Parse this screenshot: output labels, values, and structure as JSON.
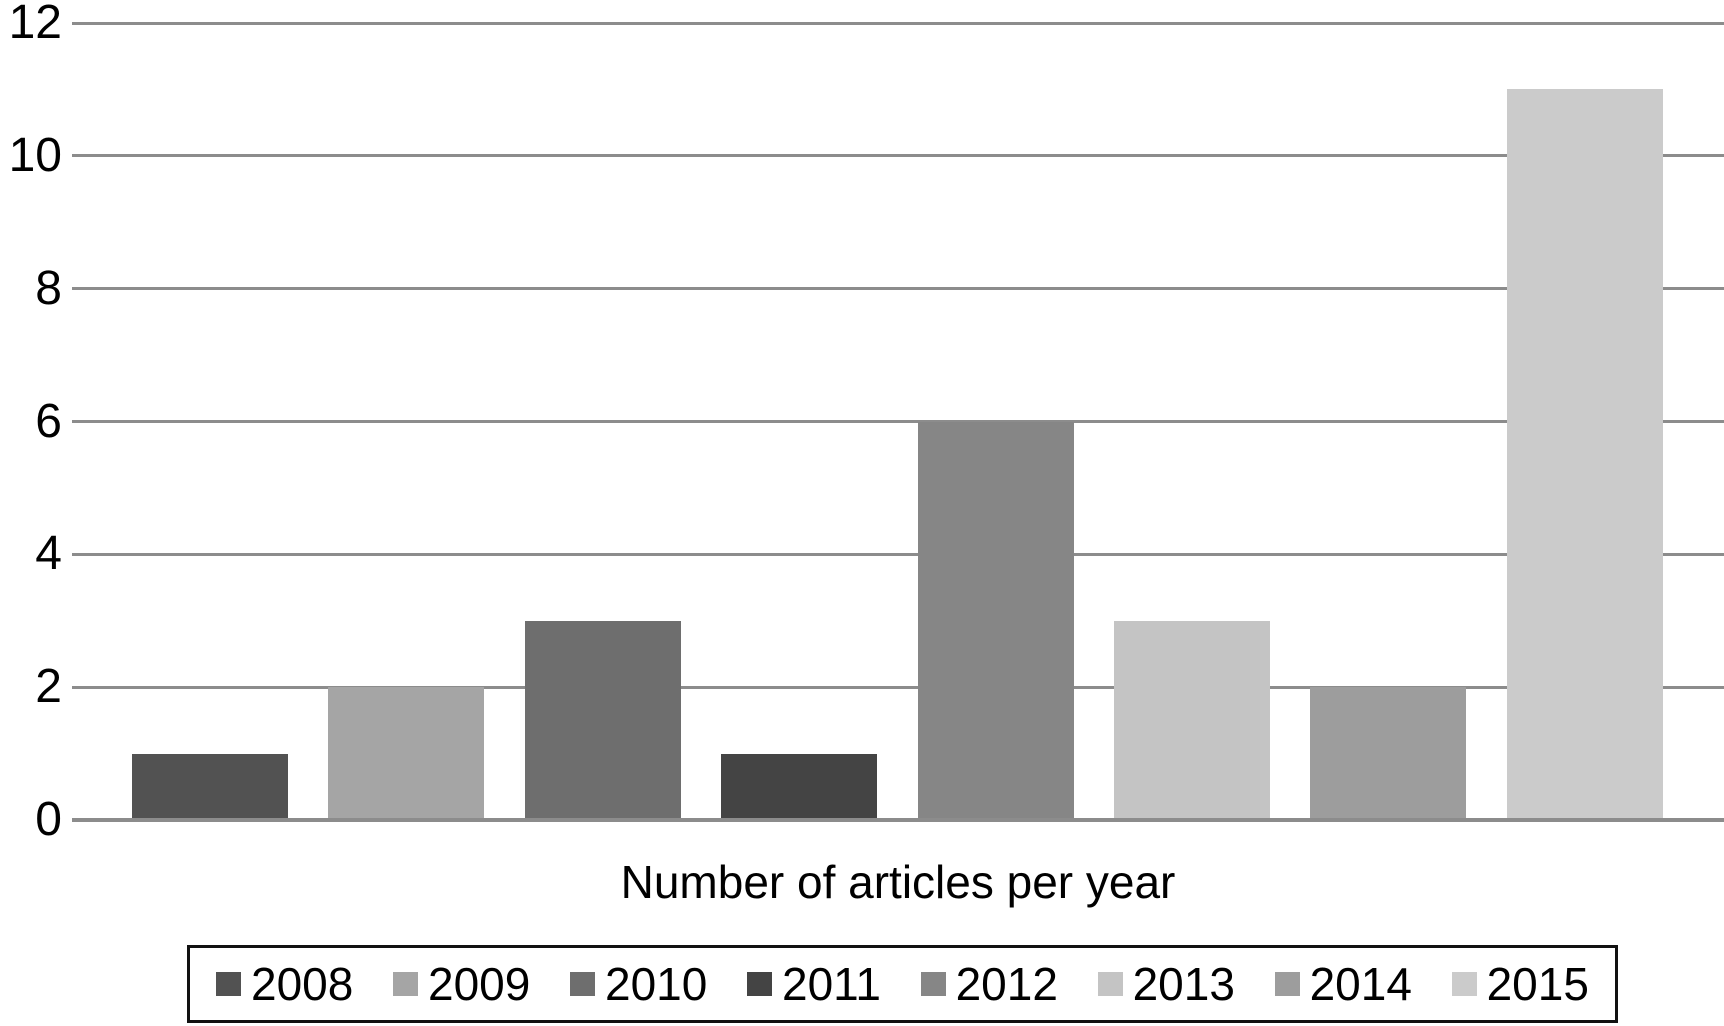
{
  "chart_data": {
    "type": "bar",
    "title": "",
    "xlabel": "Number of articles per year",
    "ylabel": "",
    "categories": [
      "2008",
      "2009",
      "2010",
      "2011",
      "2012",
      "2013",
      "2014",
      "2015"
    ],
    "values": [
      1,
      2,
      3,
      1,
      6,
      3,
      2,
      11
    ],
    "bar_colors": [
      "#525252",
      "#A5A5A5",
      "#6E6E6E",
      "#444444",
      "#868686",
      "#C4C4C4",
      "#9D9D9D",
      "#CBCBCB"
    ],
    "ylim": [
      0,
      12
    ],
    "yticks": [
      0,
      2,
      4,
      6,
      8,
      10,
      12
    ],
    "grid": "horizontal",
    "legend_position": "bottom"
  },
  "colors": {
    "gridline": "#8C8C8C",
    "axis_text": "#000000",
    "background": "#FFFFFF",
    "legend_border": "#111111"
  }
}
